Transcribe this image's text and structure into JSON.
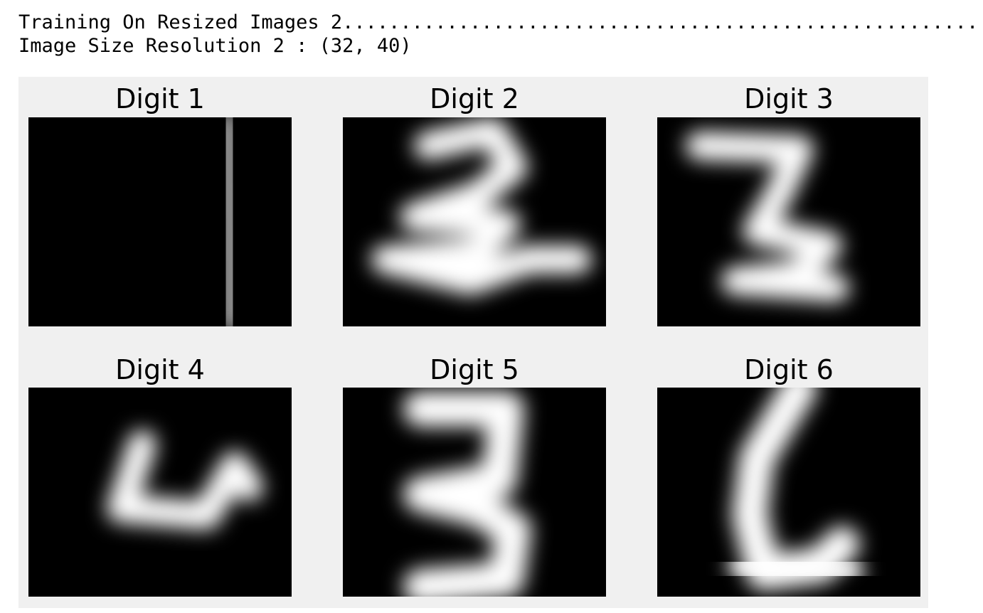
{
  "output": {
    "lines": [
      "Training On Resized Images 2.......................................................",
      "Image Size Resolution 2 : (32, 40)"
    ]
  },
  "figure": {
    "titles": [
      "Digit 1",
      "Digit 2",
      "Digit 3",
      "Digit 4",
      "Digit 5",
      "Digit 6"
    ]
  }
}
